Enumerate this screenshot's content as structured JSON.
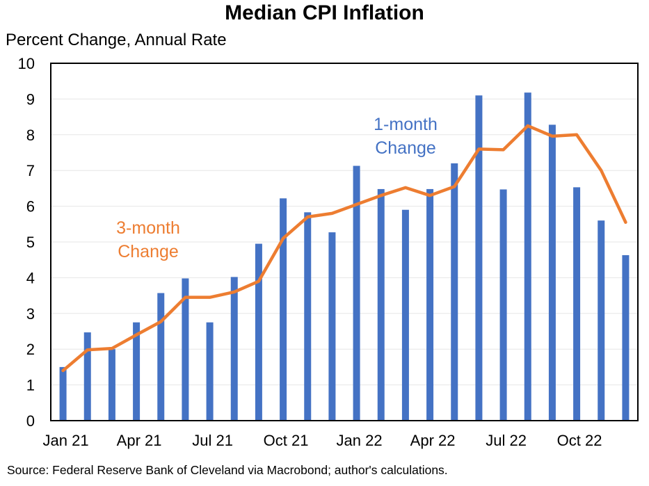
{
  "chart_data": {
    "type": "bar",
    "title": "Median CPI Inflation",
    "ylabel": "Percent Change, Annual Rate",
    "xlabel": "",
    "source": "Source: Federal Reserve Bank of Cleveland via Macrobond; author's calculations.",
    "ylim": [
      0,
      10
    ],
    "yticks": [
      "0",
      "1",
      "2",
      "3",
      "4",
      "5",
      "6",
      "7",
      "8",
      "9",
      "10"
    ],
    "grid": true,
    "xtick_labels": [
      {
        "index": 0,
        "label": "Jan 21"
      },
      {
        "index": 3,
        "label": "Apr 21"
      },
      {
        "index": 6,
        "label": "Jul 21"
      },
      {
        "index": 9,
        "label": "Oct 21"
      },
      {
        "index": 12,
        "label": "Jan 22"
      },
      {
        "index": 15,
        "label": "Apr 22"
      },
      {
        "index": 18,
        "label": "Jul 22"
      },
      {
        "index": 21,
        "label": "Oct 22"
      }
    ],
    "months": [
      "Jan 21",
      "Feb 21",
      "Mar 21",
      "Apr 21",
      "May 21",
      "Jun 21",
      "Jul 21",
      "Aug 21",
      "Sep 21",
      "Oct 21",
      "Nov 21",
      "Dec 21",
      "Jan 22",
      "Feb 22",
      "Mar 22",
      "Apr 22",
      "May 22",
      "Jun 22",
      "Jul 22",
      "Aug 22",
      "Sep 22",
      "Oct 22",
      "Nov 22",
      "Dec 22"
    ],
    "series": [
      {
        "name": "1-month Change",
        "kind": "bar",
        "color": "#4472C4",
        "values": [
          1.5,
          2.47,
          2.0,
          2.75,
          3.57,
          3.98,
          2.75,
          4.02,
          4.95,
          6.22,
          5.83,
          5.27,
          7.13,
          6.48,
          5.9,
          6.48,
          7.2,
          9.1,
          6.47,
          9.18,
          8.28,
          6.53,
          5.6,
          4.63
        ]
      },
      {
        "name": "3-month Change",
        "kind": "line",
        "color": "#ED7D31",
        "values": [
          1.4,
          1.98,
          2.02,
          2.4,
          2.77,
          3.45,
          3.45,
          3.6,
          3.9,
          5.1,
          5.7,
          5.8,
          6.05,
          6.3,
          6.52,
          6.3,
          6.55,
          7.6,
          7.58,
          8.25,
          7.96,
          8.0,
          7.0,
          5.55
        ]
      }
    ],
    "annotations": [
      {
        "series": "1-month Change",
        "lines": [
          "1-month",
          "Change"
        ],
        "color": "#4472C4"
      },
      {
        "series": "3-month Change",
        "lines": [
          "3-month",
          "Change"
        ],
        "color": "#ED7D31"
      }
    ]
  }
}
